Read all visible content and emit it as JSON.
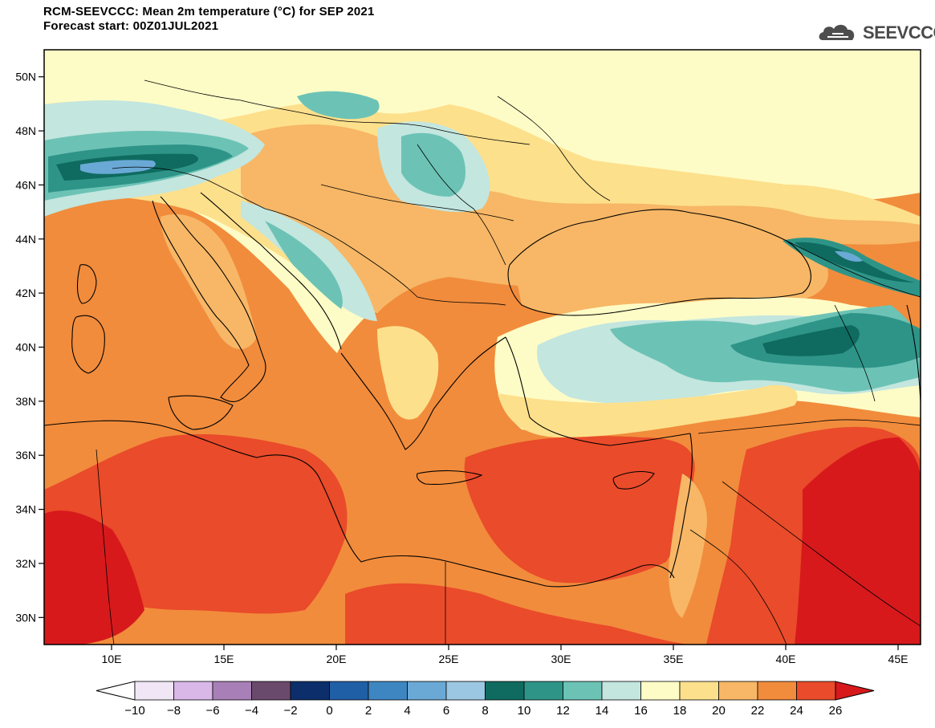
{
  "header": {
    "title": "RCM-SEEVCCC: Mean 2m temperature (°C) for SEP 2021",
    "subtitle": "Forecast start: 00Z01JUL2021",
    "logo_text": "SEEVCCC",
    "logo_icon": "cloud-icon"
  },
  "map": {
    "lon_range": [
      7,
      46
    ],
    "lat_range": [
      29,
      51
    ],
    "lat_ticks": [
      {
        "value": 50,
        "label": "50N"
      },
      {
        "value": 48,
        "label": "48N"
      },
      {
        "value": 46,
        "label": "46N"
      },
      {
        "value": 44,
        "label": "44N"
      },
      {
        "value": 42,
        "label": "42N"
      },
      {
        "value": 40,
        "label": "40N"
      },
      {
        "value": 38,
        "label": "38N"
      },
      {
        "value": 36,
        "label": "36N"
      },
      {
        "value": 34,
        "label": "34N"
      },
      {
        "value": 32,
        "label": "32N"
      },
      {
        "value": 30,
        "label": "30N"
      }
    ],
    "lon_ticks": [
      {
        "value": 10,
        "label": "10E"
      },
      {
        "value": 15,
        "label": "15E"
      },
      {
        "value": 20,
        "label": "20E"
      },
      {
        "value": 25,
        "label": "25E"
      },
      {
        "value": 30,
        "label": "30E"
      },
      {
        "value": 35,
        "label": "35E"
      },
      {
        "value": 40,
        "label": "40E"
      },
      {
        "value": 45,
        "label": "45E"
      }
    ]
  },
  "colorbar": {
    "labels": [
      "−10",
      "−8",
      "−6",
      "−4",
      "−2",
      "0",
      "2",
      "4",
      "6",
      "8",
      "10",
      "12",
      "14",
      "16",
      "18",
      "20",
      "22",
      "24",
      "26"
    ],
    "colors": [
      "#f1e6f6",
      "#d9b7e6",
      "#a97fb8",
      "#6a4a6c",
      "#0c2f6b",
      "#1f5fa6",
      "#3e86c2",
      "#6aa9d6",
      "#9bc7e2",
      "#0f6b5f",
      "#2e9488",
      "#6cc3b5",
      "#c3e6df",
      "#fefcc6",
      "#fde08c",
      "#f7b766",
      "#f18c3c",
      "#ea4b2a"
    ],
    "under_color": "#ffffff",
    "over_color": "#d7191c"
  }
}
